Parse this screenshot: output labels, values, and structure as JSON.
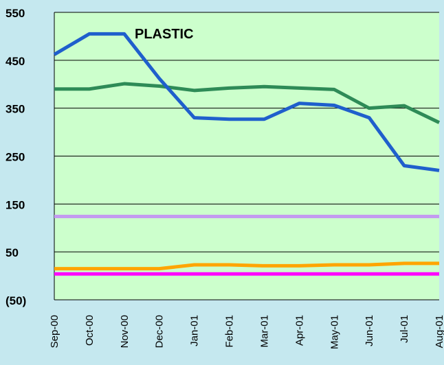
{
  "chart_data": {
    "type": "line",
    "title": "PLASTIC",
    "categories": [
      "Sep-00",
      "Oct-00",
      "Nov-00",
      "Dec-00",
      "Jan-01",
      "Feb-01",
      "Mar-01",
      "Apr-01",
      "May-01",
      "Jun-01",
      "Jul-01",
      "Aug-01"
    ],
    "y_ticks": [
      "550",
      "450",
      "350",
      "250",
      "150",
      "50",
      "(50)"
    ],
    "y_tick_values": [
      550,
      450,
      350,
      250,
      150,
      50,
      -50
    ],
    "ylim": [
      -50,
      550
    ],
    "grid": true,
    "background": "#c5e8ef",
    "plot_background": "#ccffcc",
    "series": [
      {
        "color": "#1f5fcc",
        "values": [
          462,
          505,
          505,
          412,
          330,
          327,
          327,
          360,
          356,
          330,
          230,
          220
        ]
      },
      {
        "color": "#2e8b57",
        "values": [
          390,
          390,
          401,
          396,
          387,
          392,
          395,
          392,
          389,
          350,
          355,
          320
        ]
      },
      {
        "color": "#c39bf0",
        "values": [
          124,
          124,
          124,
          124,
          124,
          124,
          124,
          124,
          124,
          124,
          124,
          124
        ]
      },
      {
        "color": "#ffa500",
        "values": [
          15,
          15,
          15,
          15,
          23,
          23,
          21,
          21,
          23,
          23,
          26,
          26
        ]
      },
      {
        "color": "#ff00ff",
        "values": [
          4,
          4,
          4,
          4,
          4,
          4,
          4,
          4,
          4,
          4,
          4,
          4
        ]
      }
    ]
  }
}
